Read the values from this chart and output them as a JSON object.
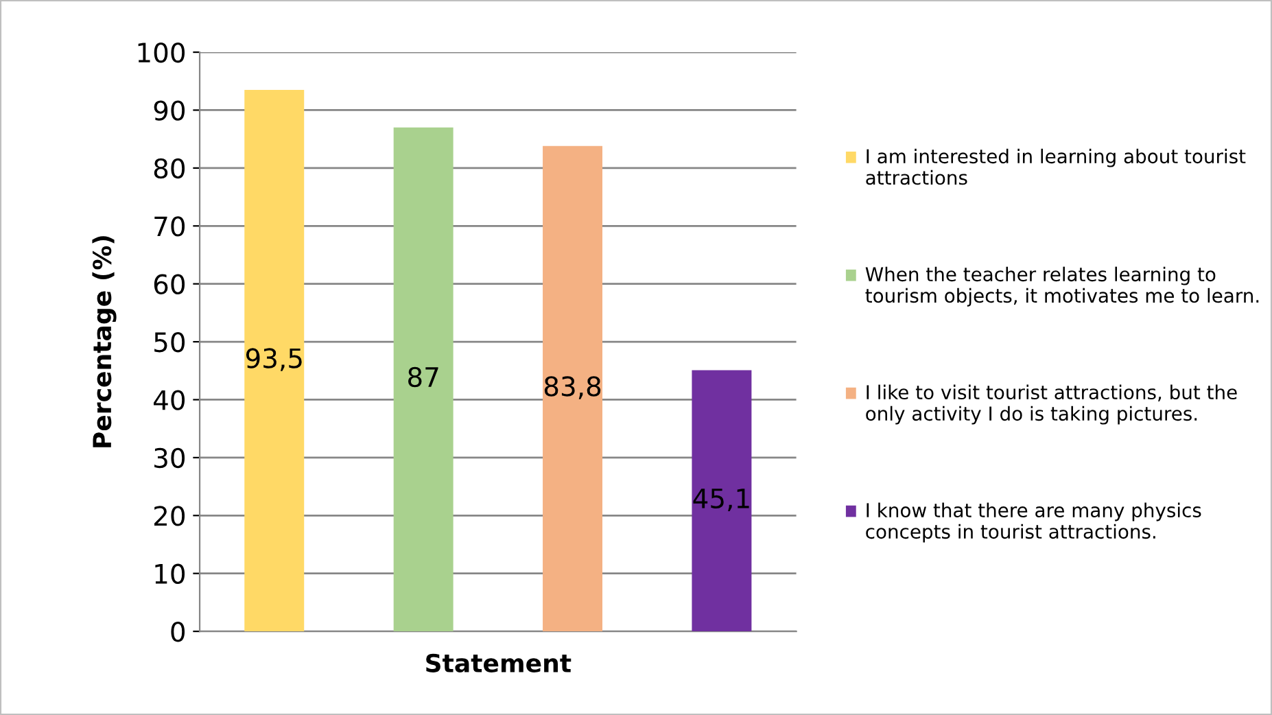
{
  "chart_data": {
    "type": "bar",
    "xlabel": "Statement",
    "ylabel": "Percentage (%)",
    "categories": [
      null,
      null,
      null,
      null
    ],
    "series": [
      {
        "name": "I am interested in learning about tourist attractions",
        "color": "#ffd966",
        "values": [
          93.5,
          null,
          null,
          null
        ],
        "value_labels": [
          "93,5",
          null,
          null,
          null
        ]
      },
      {
        "name": "When the teacher relates learning to tourism objects, it motivates me to learn.",
        "color": "#a9d18e",
        "values": [
          null,
          87,
          null,
          null
        ],
        "value_labels": [
          null,
          "87",
          null,
          null
        ]
      },
      {
        "name": "I like to visit tourist attractions, but the only activity I do is taking pictures.",
        "color": "#f4b183",
        "values": [
          null,
          null,
          83.8,
          null
        ],
        "value_labels": [
          null,
          null,
          "83,8",
          null
        ]
      },
      {
        "name": "I know that there are many physics concepts in tourist attractions.",
        "color": "#7030a0",
        "values": [
          null,
          null,
          null,
          45.1
        ],
        "value_labels": [
          null,
          null,
          null,
          "45,1"
        ]
      }
    ],
    "ylim": [
      0,
      100
    ],
    "yticks": [
      0,
      10,
      20,
      30,
      40,
      50,
      60,
      70,
      80,
      90,
      100
    ],
    "grid": "y",
    "legend": "right"
  }
}
